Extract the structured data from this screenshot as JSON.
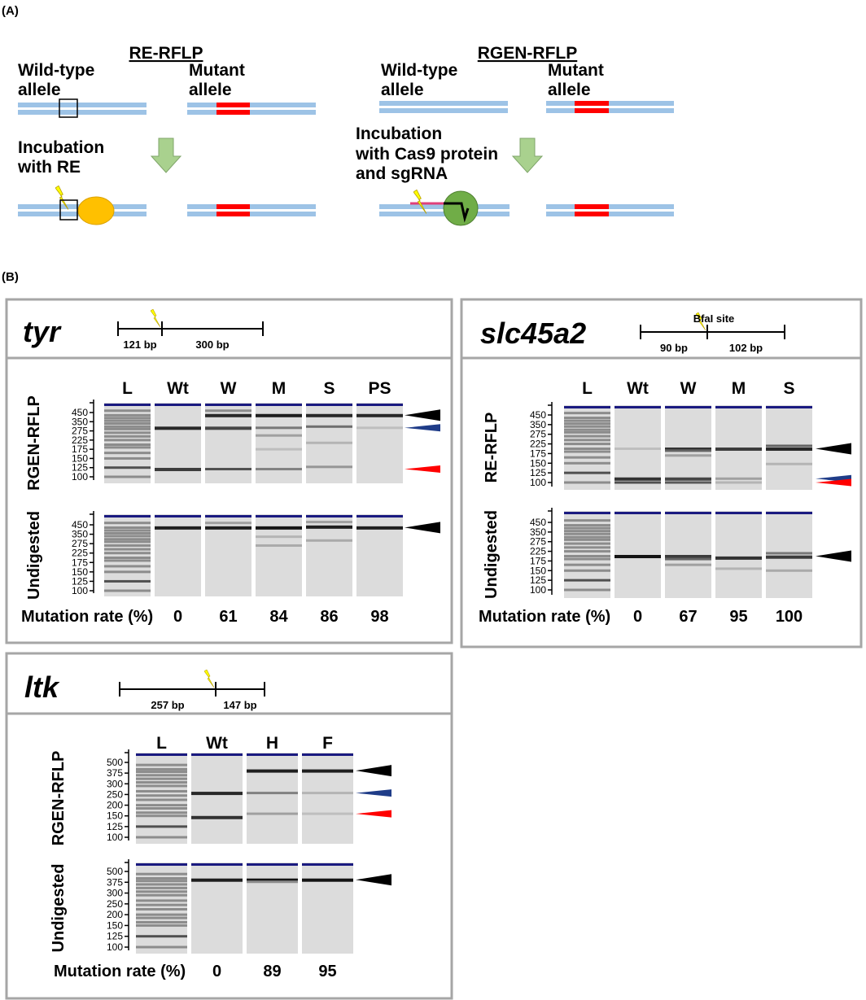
{
  "panel_a": {
    "label": "(A)",
    "re_rflp": {
      "title": "RE-RFLP",
      "wild_type": [
        "Wild-type",
        "allele"
      ],
      "mutant": [
        "Mutant",
        "allele"
      ],
      "incubation": [
        "Incubation",
        "with RE"
      ]
    },
    "rgen_rflp": {
      "title": "RGEN-RFLP",
      "wild_type": [
        "Wild-type",
        "allele"
      ],
      "mutant": [
        "Mutant",
        "allele"
      ],
      "incubation": [
        "Incubation",
        "with Cas9 protein",
        "and sgRNA"
      ]
    },
    "colors": {
      "dna": "#9dc3e6",
      "mutation": "#ff0000",
      "arrow": "#a9d18e",
      "re_enzyme": "#ffc000",
      "cas9": "#70ad47",
      "sgrna": "#e0407a",
      "cut": "#ffff00"
    }
  },
  "panel_b": {
    "label": "(B)",
    "mutation_rate_label": "Mutation rate (%)",
    "ladder_bands": [
      470,
      420,
      390,
      360,
      335,
      310,
      290,
      265,
      245,
      225,
      200,
      185,
      165,
      150,
      125,
      100
    ],
    "genes": [
      {
        "name": "tyr",
        "schematic": {
          "left": "121 bp",
          "right": "300 bp"
        },
        "lanes": [
          "L",
          "Wt",
          "W",
          "M",
          "S",
          "PS"
        ],
        "mutation_rates": [
          "0",
          "61",
          "84",
          "86",
          "98"
        ],
        "gels": [
          {
            "label": "RGEN-RFLP",
            "ticks": [
              "450",
              "350",
              "275",
              "225",
              "175",
              "150",
              "125",
              "100"
            ],
            "bands": [
              [
                [
                  300,
                  0.9
                ],
                [
                  121,
                  0.8
                ]
              ],
              [
                [
                  421,
                  0.9
                ],
                [
                  470,
                  0.4
                ],
                [
                  300,
                  0.75
                ],
                [
                  121,
                  0.7
                ]
              ],
              [
                [
                  421,
                  0.95
                ],
                [
                  300,
                  0.5
                ],
                [
                  250,
                  0.3
                ],
                [
                  175,
                  0.15
                ],
                [
                  121,
                  0.45
                ]
              ],
              [
                [
                  421,
                  0.9
                ],
                [
                  310,
                  0.55
                ],
                [
                  210,
                  0.2
                ],
                [
                  127,
                  0.35
                ]
              ],
              [
                [
                  421,
                  0.9
                ],
                [
                  300,
                  0.15
                ]
              ]
            ],
            "markers": [
              {
                "bp": 421,
                "color": "#000000"
              },
              {
                "bp": 300,
                "color": "#1f3c88"
              },
              {
                "bp": 121,
                "color": "#ff0000"
              }
            ]
          },
          {
            "label": "Undigested",
            "ticks": [
              "450",
              "350",
              "275",
              "225",
              "175",
              "150",
              "125",
              "100"
            ],
            "bands": [
              [
                [
                  421,
                  0.95
                ]
              ],
              [
                [
                  421,
                  0.95
                ],
                [
                  470,
                  0.3
                ]
              ],
              [
                [
                  421,
                  1
                ],
                [
                  330,
                  0.2
                ],
                [
                  265,
                  0.25
                ]
              ],
              [
                [
                  430,
                  0.95
                ],
                [
                  480,
                  0.3
                ],
                [
                  300,
                  0.25
                ]
              ],
              [
                [
                  421,
                  0.95
                ]
              ]
            ],
            "markers": [
              {
                "bp": 421,
                "color": "#000000"
              }
            ]
          }
        ]
      },
      {
        "name": "slc45a2",
        "schematic": {
          "left": "90 bp",
          "right": "102 bp",
          "site": "BfaI site"
        },
        "lanes": [
          "L",
          "Wt",
          "W",
          "M",
          "S"
        ],
        "mutation_rates": [
          "0",
          "67",
          "95",
          "100"
        ],
        "gels": [
          {
            "label": "RE-RFLP",
            "ticks": [
              "450",
              "350",
              "275",
              "225",
              "175",
              "150",
              "125",
              "100"
            ],
            "bands": [
              [
                [
                  200,
                  0.15
                ],
                [
                  110,
                  0.85
                ],
                [
                  100,
                  0.7
                ]
              ],
              [
                [
                  200,
                  0.85
                ],
                [
                  190,
                  0.6
                ],
                [
                  170,
                  0.3
                ],
                [
                  110,
                  0.75
                ],
                [
                  100,
                  0.65
                ]
              ],
              [
                [
                  200,
                  0.8
                ],
                [
                  110,
                  0.3
                ],
                [
                  100,
                  0.2
                ]
              ],
              [
                [
                  200,
                  0.9
                ],
                [
                  215,
                  0.6
                ],
                [
                  148,
                  0.2
                ]
              ]
            ],
            "markers": [
              {
                "bp": 200,
                "color": "#000000"
              },
              {
                "bp": 110,
                "color": "#1f3c88"
              },
              {
                "bp": 100,
                "color": "#ff0000"
              }
            ]
          },
          {
            "label": "Undigested",
            "ticks": [
              "450",
              "350",
              "275",
              "225",
              "175",
              "150",
              "125",
              "100"
            ],
            "bands": [
              [
                [
                  200,
                  1
                ]
              ],
              [
                [
                  200,
                  0.8
                ],
                [
                  185,
                  0.6
                ],
                [
                  165,
                  0.3
                ]
              ],
              [
                [
                  192,
                  0.85
                ],
                [
                  155,
                  0.2
                ]
              ],
              [
                [
                  197,
                  0.8
                ],
                [
                  215,
                  0.5
                ],
                [
                  150,
                  0.25
                ]
              ]
            ],
            "markers": [
              {
                "bp": 200,
                "color": "#000000"
              }
            ]
          }
        ]
      },
      {
        "name": "ltk",
        "schematic": {
          "left": "257 bp",
          "right": "147 bp"
        },
        "lanes": [
          "L",
          "Wt",
          "H",
          "F"
        ],
        "mutation_rates": [
          "0",
          "89",
          "95"
        ],
        "gels": [
          {
            "label": "RGEN-RFLP",
            "ticks": [
              "500",
              "375",
              "300",
              "250",
              "200",
              "150",
              "125",
              "100"
            ],
            "bands": [
              [
                [
                  257,
                  0.9
                ],
                [
                  147,
                  0.85
                ]
              ],
              [
                [
                  404,
                  0.95
                ],
                [
                  257,
                  0.45
                ],
                [
                  160,
                  0.3
                ]
              ],
              [
                [
                  404,
                  0.95
                ],
                [
                  257,
                  0.2
                ],
                [
                  160,
                  0.15
                ]
              ]
            ],
            "markers": [
              {
                "bp": 404,
                "color": "#000000"
              },
              {
                "bp": 257,
                "color": "#1f3c88"
              },
              {
                "bp": 160,
                "color": "#ff0000"
              }
            ]
          },
          {
            "label": "Undigested",
            "ticks": [
              "500",
              "375",
              "300",
              "250",
              "200",
              "150",
              "125",
              "100"
            ],
            "bands": [
              [
                [
                  404,
                  0.95
                ]
              ],
              [
                [
                  404,
                  1
                ],
                [
                  380,
                  0.4
                ]
              ],
              [
                [
                  404,
                  1
                ]
              ]
            ],
            "markers": [
              {
                "bp": 404,
                "color": "#000000"
              }
            ]
          }
        ]
      }
    ]
  }
}
